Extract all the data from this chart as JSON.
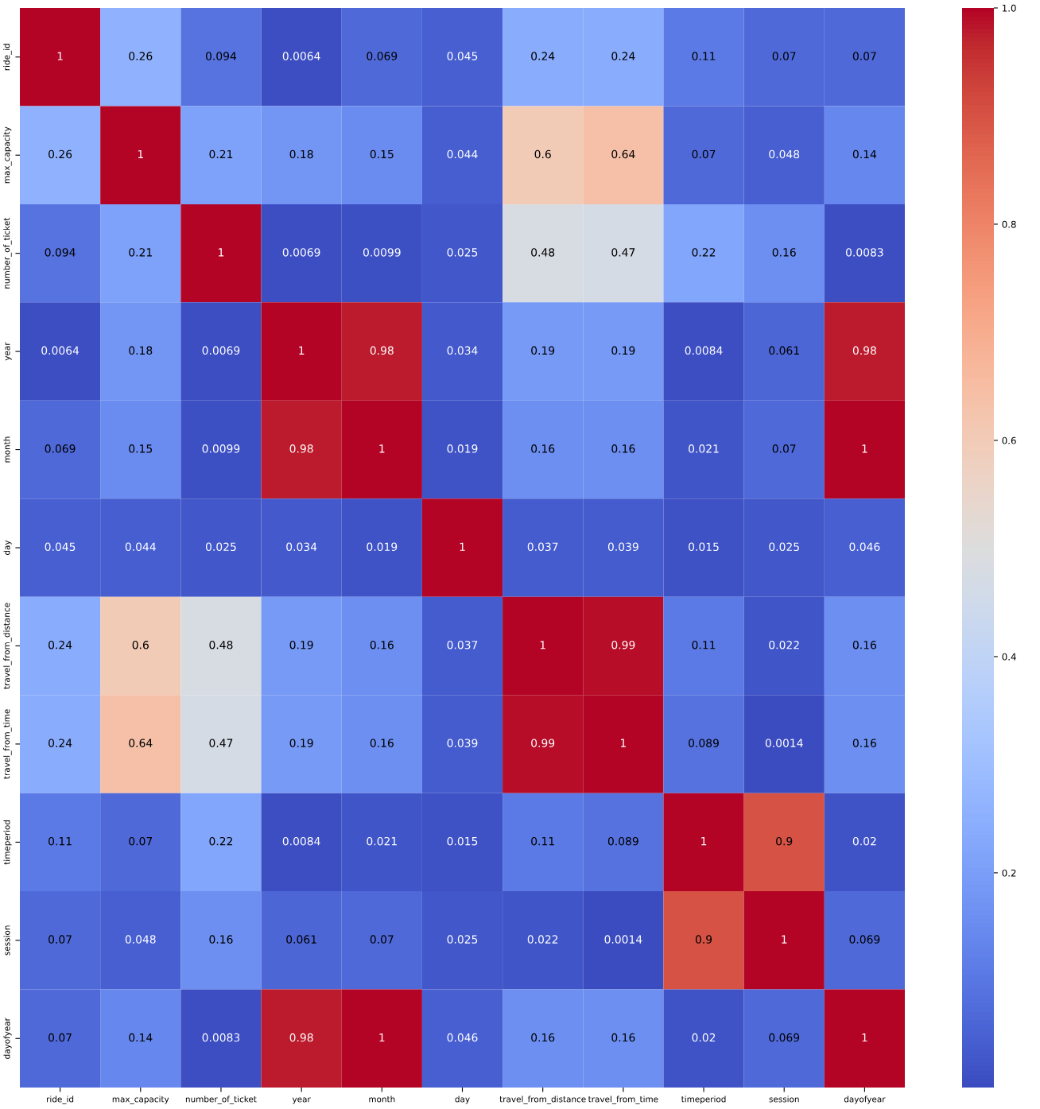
{
  "chart_data": {
    "type": "heatmap",
    "categories": [
      "ride_id",
      "max_capacity",
      "number_of_ticket",
      "year",
      "month",
      "day",
      "travel_from_distance",
      "travel_from_time",
      "timeperiod",
      "session",
      "dayofyear"
    ],
    "y_categories": [
      "ride_id",
      "max_capacity",
      "number_of_ticket",
      "year",
      "month",
      "day",
      "travel_from_distance",
      "travel_from_time",
      "timeperiod",
      "session",
      "dayofyear"
    ],
    "cells": [
      [
        1,
        0.26,
        0.094,
        0.0064,
        0.069,
        0.045,
        0.24,
        0.24,
        0.11,
        0.07,
        0.07
      ],
      [
        0.26,
        1,
        0.21,
        0.18,
        0.15,
        0.044,
        0.6,
        0.64,
        0.07,
        0.048,
        0.14
      ],
      [
        0.094,
        0.21,
        1,
        0.0069,
        0.0099,
        0.025,
        0.48,
        0.47,
        0.22,
        0.16,
        0.0083
      ],
      [
        0.0064,
        0.18,
        0.0069,
        1,
        0.98,
        0.034,
        0.19,
        0.19,
        0.0084,
        0.061,
        0.98
      ],
      [
        0.069,
        0.15,
        0.0099,
        0.98,
        1,
        0.019,
        0.16,
        0.16,
        0.021,
        0.07,
        1
      ],
      [
        0.045,
        0.044,
        0.025,
        0.034,
        0.019,
        1,
        0.037,
        0.039,
        0.015,
        0.025,
        0.046
      ],
      [
        0.24,
        0.6,
        0.48,
        0.19,
        0.16,
        0.037,
        1,
        0.99,
        0.11,
        0.022,
        0.16
      ],
      [
        0.24,
        0.64,
        0.47,
        0.19,
        0.16,
        0.039,
        0.99,
        1,
        0.089,
        0.0014,
        0.16
      ],
      [
        0.11,
        0.07,
        0.22,
        0.0084,
        0.021,
        0.015,
        0.11,
        0.089,
        1,
        0.9,
        0.02
      ],
      [
        0.07,
        0.048,
        0.16,
        0.061,
        0.07,
        0.025,
        0.022,
        0.0014,
        0.9,
        1,
        0.069
      ],
      [
        0.07,
        0.14,
        0.0083,
        0.98,
        1,
        0.046,
        0.16,
        0.16,
        0.02,
        0.069,
        1
      ]
    ],
    "data_labels": true,
    "clim": [
      0.0014,
      1
    ],
    "cticks": [
      0.2,
      0.4,
      0.6,
      0.8,
      {
        "value": 1,
        "label": "1.0"
      }
    ],
    "grid": false
  }
}
